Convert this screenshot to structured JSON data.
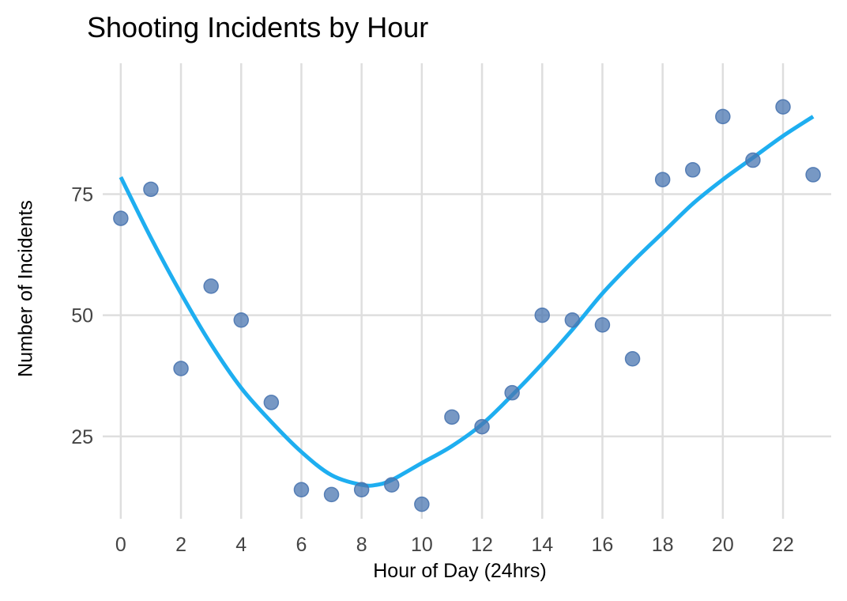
{
  "chart_data": {
    "type": "scatter",
    "title": "Shooting Incidents by Hour",
    "xlabel": "Hour of Day (24hrs)",
    "ylabel": "Number of Incidents",
    "xlim": [
      -0.6,
      23.6
    ],
    "ylim": [
      8,
      102
    ],
    "x_ticks": [
      0,
      2,
      4,
      6,
      8,
      10,
      12,
      14,
      16,
      18,
      20,
      22
    ],
    "y_ticks": [
      25,
      50,
      75
    ],
    "grid": true,
    "points": {
      "x": [
        0,
        1,
        2,
        3,
        4,
        5,
        6,
        7,
        8,
        9,
        10,
        11,
        12,
        13,
        14,
        15,
        16,
        17,
        18,
        19,
        20,
        21,
        22,
        23
      ],
      "y": [
        70,
        76,
        39,
        56,
        49,
        32,
        14,
        13,
        14,
        15,
        11,
        29,
        27,
        34,
        50,
        49,
        48,
        41,
        78,
        80,
        91,
        82,
        93,
        79
      ]
    },
    "smooth_line": {
      "x": [
        0,
        1,
        2,
        3,
        4,
        5,
        6,
        7,
        8,
        8.5,
        9,
        10,
        11,
        12,
        13,
        14,
        15,
        16,
        17,
        18,
        19,
        20,
        21,
        22,
        23
      ],
      "y": [
        78.5,
        66,
        54.5,
        44,
        35,
        28,
        21.8,
        17,
        15,
        15,
        16,
        19.5,
        23,
        27.5,
        33.5,
        40,
        47,
        54.5,
        61,
        67,
        73,
        78,
        82.5,
        87,
        91
      ]
    },
    "colors": {
      "points": "#4a76b0",
      "line": "#1eaef0",
      "grid": "#dedede"
    }
  }
}
